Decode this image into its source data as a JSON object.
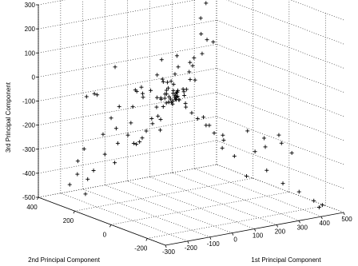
{
  "chart_data": {
    "type": "scatter3d",
    "marker": "+",
    "grid": true,
    "xlabel": "1st Principal Component",
    "ylabel": "2nd Principal Component",
    "zlabel": "3rd Principal Component",
    "xlim": [
      -300,
      500
    ],
    "ylim": [
      -300,
      400
    ],
    "zlim": [
      -500,
      300
    ],
    "xticks": [
      -300,
      -200,
      -100,
      0,
      100,
      200,
      300,
      400,
      500
    ],
    "yticks": [
      -200,
      0,
      200,
      400
    ],
    "zticks": [
      -500,
      -400,
      -300,
      -200,
      -100,
      0,
      100,
      200,
      300
    ],
    "points": [
      [
        -30,
        20,
        40
      ],
      [
        -20,
        -20,
        160
      ],
      [
        -40,
        40,
        130
      ],
      [
        -10,
        -60,
        30
      ],
      [
        -50,
        10,
        -20
      ],
      [
        -30,
        -10,
        -30
      ],
      [
        -10,
        5,
        -20
      ],
      [
        -15,
        -5,
        -25
      ],
      [
        -20,
        15,
        -30
      ],
      [
        -40,
        0,
        -35
      ],
      [
        -30,
        25,
        -10
      ],
      [
        -25,
        -15,
        -5
      ],
      [
        -5,
        -5,
        -15
      ],
      [
        0,
        10,
        -10
      ],
      [
        -35,
        5,
        -15
      ],
      [
        -45,
        15,
        -5
      ],
      [
        -20,
        -30,
        -20
      ],
      [
        -10,
        -20,
        -25
      ],
      [
        -60,
        20,
        -20
      ],
      [
        -50,
        30,
        -30
      ],
      [
        -25,
        5,
        -40
      ],
      [
        -35,
        20,
        -45
      ],
      [
        -15,
        10,
        -50
      ],
      [
        -45,
        25,
        -60
      ],
      [
        -5,
        0,
        0
      ],
      [
        -20,
        0,
        10
      ],
      [
        -10,
        -10,
        5
      ],
      [
        -30,
        0,
        50
      ],
      [
        -35,
        10,
        20
      ],
      [
        -10,
        50,
        -5
      ],
      [
        -5,
        20,
        -10
      ],
      [
        -25,
        -25,
        -10
      ],
      [
        -40,
        100,
        -15
      ],
      [
        -60,
        120,
        -30
      ],
      [
        -70,
        140,
        -25
      ],
      [
        -50,
        130,
        -50
      ],
      [
        -20,
        90,
        -45
      ],
      [
        -80,
        150,
        -90
      ],
      [
        -30,
        80,
        -80
      ],
      [
        -40,
        60,
        -110
      ],
      [
        -60,
        70,
        -120
      ],
      [
        -20,
        70,
        -130
      ],
      [
        -100,
        200,
        -100
      ],
      [
        -120,
        220,
        -150
      ],
      [
        -80,
        160,
        -160
      ],
      [
        -90,
        100,
        -220
      ],
      [
        -110,
        140,
        -200
      ],
      [
        -70,
        110,
        -210
      ],
      [
        -130,
        180,
        -180
      ],
      [
        -60,
        100,
        -180
      ],
      [
        -80,
        130,
        -240
      ],
      [
        -100,
        120,
        -230
      ],
      [
        -140,
        240,
        -220
      ],
      [
        -40,
        90,
        -150
      ],
      [
        -30,
        60,
        -170
      ],
      [
        -100,
        380,
        -110
      ],
      [
        -150,
        260,
        -60
      ],
      [
        -130,
        300,
        -70
      ],
      [
        -160,
        320,
        -300
      ],
      [
        -90,
        220,
        -260
      ],
      [
        -140,
        230,
        -300
      ],
      [
        -120,
        200,
        -330
      ],
      [
        -180,
        330,
        -350
      ],
      [
        -160,
        300,
        -420
      ],
      [
        -170,
        300,
        -480
      ],
      [
        -200,
        350,
        -450
      ],
      [
        -190,
        320,
        -400
      ],
      [
        -150,
        280,
        -380
      ],
      [
        30,
        -40,
        -80
      ],
      [
        40,
        -60,
        -100
      ],
      [
        60,
        -100,
        -120
      ],
      [
        20,
        -20,
        -60
      ],
      [
        50,
        -80,
        -90
      ],
      [
        10,
        -30,
        -40
      ],
      [
        70,
        -70,
        -130
      ],
      [
        80,
        -150,
        -150
      ],
      [
        100,
        -130,
        -180
      ],
      [
        150,
        -200,
        -130
      ],
      [
        200,
        -230,
        -160
      ],
      [
        250,
        -250,
        -150
      ],
      [
        230,
        -200,
        -210
      ],
      [
        200,
        -180,
        -230
      ],
      [
        300,
        -260,
        -230
      ],
      [
        270,
        -240,
        -190
      ],
      [
        260,
        -260,
        -350
      ],
      [
        300,
        -300,
        -380
      ],
      [
        350,
        -320,
        -420
      ],
      [
        380,
        -330,
        -440
      ],
      [
        390,
        -300,
        -460
      ],
      [
        170,
        -170,
        -330
      ],
      [
        140,
        -140,
        -250
      ],
      [
        110,
        -110,
        -220
      ],
      [
        90,
        -90,
        -160
      ],
      [
        220,
        -220,
        -300
      ],
      [
        60,
        40,
        -20
      ],
      [
        100,
        60,
        50
      ],
      [
        130,
        70,
        100
      ],
      [
        150,
        50,
        120
      ],
      [
        120,
        80,
        80
      ],
      [
        180,
        60,
        170
      ],
      [
        140,
        90,
        60
      ],
      [
        110,
        40,
        20
      ],
      [
        170,
        80,
        190
      ],
      [
        160,
        70,
        260
      ],
      [
        200,
        90,
        310
      ],
      [
        80,
        30,
        30
      ],
      [
        40,
        20,
        0
      ],
      [
        200,
        50,
        160
      ],
      [
        90,
        110,
        -40
      ],
      [
        50,
        70,
        -60
      ],
      [
        70,
        50,
        -40
      ],
      [
        10,
        10,
        100
      ],
      [
        20,
        40,
        60
      ],
      [
        -20,
        60,
        40
      ],
      [
        30,
        60,
        10
      ],
      [
        0,
        80,
        20
      ],
      [
        -60,
        40,
        70
      ],
      [
        -90,
        90,
        10
      ],
      [
        -150,
        50,
        20
      ],
      [
        -200,
        100,
        110
      ]
    ]
  }
}
